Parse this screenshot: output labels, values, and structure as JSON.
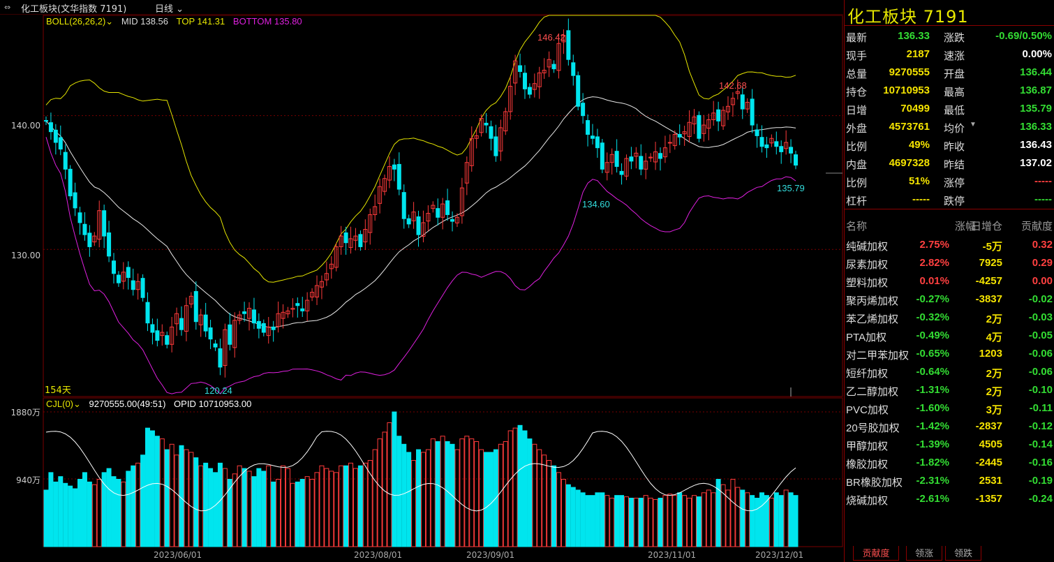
{
  "topbar": {
    "title": "化工板块(文华指数 7191)",
    "period": "日线",
    "period_arrow": "chevron-down-icon"
  },
  "indicator_main": {
    "name": "BOLL(26,26,2)",
    "mid": "MID 138.56",
    "top": "TOP 141.31",
    "bottom": "BOTTOM 135.80"
  },
  "indicator_sub": {
    "name": "CJL(0)",
    "vol": "9270555.00(49:51)",
    "opid": "OPID 10710953.00"
  },
  "day_count": "154天",
  "colors": {
    "up": "#ff3b3b",
    "down": "#00e5ee",
    "mid": "#e8e8e8",
    "top": "#e6e600",
    "bottom": "#e020e0",
    "grid": "#7a0000"
  },
  "chart_data": {
    "type": "candlestick",
    "price_ylim": [
      119,
      147.5
    ],
    "y_ticks": [
      "140.00",
      "130.00"
    ],
    "vol_ticks": [
      "1880万",
      "940万"
    ],
    "x_ticks": [
      "2023/06/01",
      "2023/08/01",
      "2023/09/01",
      "2023/11/01",
      "2023/12/01"
    ],
    "annotations": {
      "high": "146.42",
      "low": "120.24",
      "local_high": "142.68",
      "local_low": "134.60",
      "last_low": "135.79"
    },
    "ohlc_closes": [
      139.6,
      138.8,
      138.0,
      137.5,
      136.0,
      134.0,
      133.1,
      132.0,
      131.1,
      130.2,
      131.0,
      132.9,
      131.0,
      129.5,
      128.2,
      127.5,
      128.3,
      127.9,
      127.0,
      127.6,
      126.4,
      124.5,
      123.8,
      123.2,
      123.8,
      122.9,
      124.2,
      125.2,
      124.0,
      125.8,
      126.5,
      124.6,
      125.1,
      123.9,
      123.3,
      122.7,
      121.2,
      124.0,
      122.9,
      124.7,
      125.1,
      125.2,
      125.6,
      124.5,
      124.1,
      123.8,
      124.2,
      124.0,
      125.2,
      125.3,
      125.4,
      125.6,
      125.8,
      125.4,
      126.2,
      126.8,
      127.3,
      127.6,
      128.2,
      128.9,
      130.2,
      131.0,
      130.5,
      130.8,
      131.0,
      130.2,
      131.5,
      132.6,
      133.2,
      134.7,
      135.3,
      136.2,
      136.0,
      134.5,
      132.3,
      131.9,
      132.8,
      131.1,
      132.0,
      132.7,
      133.3,
      132.4,
      133.4,
      132.6,
      132.1,
      132.4,
      134.6,
      136.5,
      138.3,
      138.5,
      139.8,
      139.3,
      138.3,
      137.0,
      139.1,
      140.3,
      142.2,
      144.1,
      143.3,
      142.0,
      141.6,
      142.4,
      143.2,
      143.4,
      144.2,
      143.5,
      145.4,
      146.0,
      144.2,
      143.0,
      140.7,
      140.0,
      138.6,
      138.3,
      137.6,
      136.0,
      136.5,
      137.1,
      136.2,
      135.6,
      136.8,
      136.6,
      137.2,
      136.0,
      136.6,
      136.9,
      137.3,
      136.8,
      137.6,
      138.0,
      138.6,
      138.4,
      138.8,
      139.5,
      139.9,
      138.3,
      139.3,
      139.7,
      140.2,
      139.6,
      140.4,
      140.7,
      141.3,
      141.8,
      140.5,
      141.0,
      139.3,
      138.5,
      137.7,
      137.6,
      138.3,
      137.7,
      137.3,
      138.0,
      137.2,
      136.3
    ],
    "volume_relative": [
      0.42,
      0.55,
      0.48,
      0.52,
      0.47,
      0.45,
      0.43,
      0.5,
      0.55,
      0.48,
      0.46,
      0.5,
      0.55,
      0.58,
      0.52,
      0.5,
      0.48,
      0.56,
      0.6,
      0.62,
      0.68,
      0.88,
      0.86,
      0.82,
      0.8,
      0.72,
      0.76,
      0.68,
      0.75,
      0.72,
      0.7,
      0.66,
      0.6,
      0.62,
      0.58,
      0.55,
      0.62,
      0.58,
      0.5,
      0.54,
      0.6,
      0.58,
      0.56,
      0.52,
      0.58,
      0.56,
      0.6,
      0.48,
      0.5,
      0.6,
      0.58,
      0.47,
      0.48,
      0.5,
      0.52,
      0.5,
      0.55,
      0.6,
      0.58,
      0.56,
      0.55,
      0.6,
      0.6,
      0.62,
      0.58,
      0.6,
      0.62,
      0.64,
      0.72,
      0.8,
      0.85,
      0.92,
      1.0,
      0.82,
      0.76,
      0.7,
      0.64,
      0.72,
      0.7,
      0.72,
      0.8,
      0.78,
      0.82,
      0.78,
      0.76,
      0.72,
      0.8,
      0.82,
      0.8,
      0.78,
      0.72,
      0.7,
      0.7,
      0.72,
      0.76,
      0.78,
      0.86,
      0.88,
      0.9,
      0.86,
      0.8,
      0.76,
      0.72,
      0.68,
      0.64,
      0.6,
      0.55,
      0.5,
      0.46,
      0.44,
      0.42,
      0.4,
      0.38,
      0.38,
      0.4,
      0.4,
      0.38,
      0.36,
      0.38,
      0.38,
      0.37,
      0.36,
      0.36,
      0.36,
      0.38,
      0.36,
      0.35,
      0.36,
      0.38,
      0.39,
      0.38,
      0.4,
      0.38,
      0.36,
      0.38,
      0.37,
      0.4,
      0.42,
      0.4,
      0.5,
      0.46,
      0.42,
      0.5,
      0.44,
      0.42,
      0.4,
      0.38,
      0.36,
      0.4,
      0.38,
      0.36,
      0.4,
      0.38,
      0.42,
      0.4,
      0.38
    ]
  },
  "panel": {
    "title": "化工板块  7191",
    "quote": [
      {
        "l1": "最新",
        "v1": "136.33",
        "c1": "green",
        "l2": "涨跌",
        "v2": "-0.69/0.50%",
        "c2": "green"
      },
      {
        "l1": "现手",
        "v1": "2187",
        "c1": "yellow",
        "l2": "速涨",
        "v2": "0.00%",
        "c2": "white"
      },
      {
        "l1": "总量",
        "v1": "9270555",
        "c1": "yellow",
        "l2": "开盘",
        "v2": "136.44",
        "c2": "green"
      },
      {
        "l1": "持仓",
        "v1": "10710953",
        "c1": "yellow",
        "l2": "最高",
        "v2": "136.87",
        "c2": "green"
      },
      {
        "l1": "日增",
        "v1": "70499",
        "c1": "yellow",
        "l2": "最低",
        "v2": "135.79",
        "c2": "green"
      },
      {
        "l1": "外盘",
        "v1": "4573761",
        "c1": "yellow",
        "l2": "均价",
        "v2": "136.33",
        "c2": "green"
      },
      {
        "l1": "比例",
        "v1": "49%",
        "c1": "yellow",
        "l2": "昨收",
        "v2": "136.43",
        "c2": "white"
      },
      {
        "l1": "内盘",
        "v1": "4697328",
        "c1": "yellow",
        "l2": "昨结",
        "v2": "137.02",
        "c2": "white"
      },
      {
        "l1": "比例",
        "v1": "51%",
        "c1": "yellow",
        "l2": "涨停",
        "v2": "-----",
        "c2": "red"
      },
      {
        "l1": "杠杆",
        "v1": "-----",
        "c1": "yellow",
        "l2": "跌停",
        "v2": "-----",
        "c2": "green"
      }
    ],
    "cons_header": {
      "name": "名称",
      "chg": "涨幅",
      "oi": "日增仓",
      "ctb": "贡献度"
    },
    "constituents": [
      {
        "name": "纯碱加权",
        "chg": "2.75%",
        "oi": "-5万",
        "ctb": "0.32",
        "c": "red"
      },
      {
        "name": "尿素加权",
        "chg": "2.82%",
        "oi": "7925",
        "ctb": "0.29",
        "c": "red"
      },
      {
        "name": "塑料加权",
        "chg": "0.01%",
        "oi": "-4257",
        "ctb": "0.00",
        "c": "red"
      },
      {
        "name": "聚丙烯加权",
        "chg": "-0.27%",
        "oi": "-3837",
        "ctb": "-0.02",
        "c": "green"
      },
      {
        "name": "苯乙烯加权",
        "chg": "-0.32%",
        "oi": "2万",
        "ctb": "-0.03",
        "c": "green"
      },
      {
        "name": "PTA加权",
        "chg": "-0.49%",
        "oi": "4万",
        "ctb": "-0.05",
        "c": "green"
      },
      {
        "name": "对二甲苯加权",
        "chg": "-0.65%",
        "oi": "1203",
        "ctb": "-0.06",
        "c": "green"
      },
      {
        "name": "短纤加权",
        "chg": "-0.64%",
        "oi": "2万",
        "ctb": "-0.06",
        "c": "green"
      },
      {
        "name": "乙二醇加权",
        "chg": "-1.31%",
        "oi": "2万",
        "ctb": "-0.10",
        "c": "green"
      },
      {
        "name": "PVC加权",
        "chg": "-1.60%",
        "oi": "3万",
        "ctb": "-0.11",
        "c": "green"
      },
      {
        "name": "20号胶加权",
        "chg": "-1.42%",
        "oi": "-2837",
        "ctb": "-0.12",
        "c": "green"
      },
      {
        "name": "甲醇加权",
        "chg": "-1.39%",
        "oi": "4505",
        "ctb": "-0.14",
        "c": "green"
      },
      {
        "name": "橡胶加权",
        "chg": "-1.82%",
        "oi": "-2445",
        "ctb": "-0.16",
        "c": "green"
      },
      {
        "name": "BR橡胶加权",
        "chg": "-2.31%",
        "oi": "2531",
        "ctb": "-0.19",
        "c": "green"
      },
      {
        "name": "烧碱加权",
        "chg": "-2.61%",
        "oi": "-1357",
        "ctb": "-0.24",
        "c": "green"
      }
    ],
    "tabs": [
      "贡献度",
      "领涨",
      "领跌"
    ]
  }
}
